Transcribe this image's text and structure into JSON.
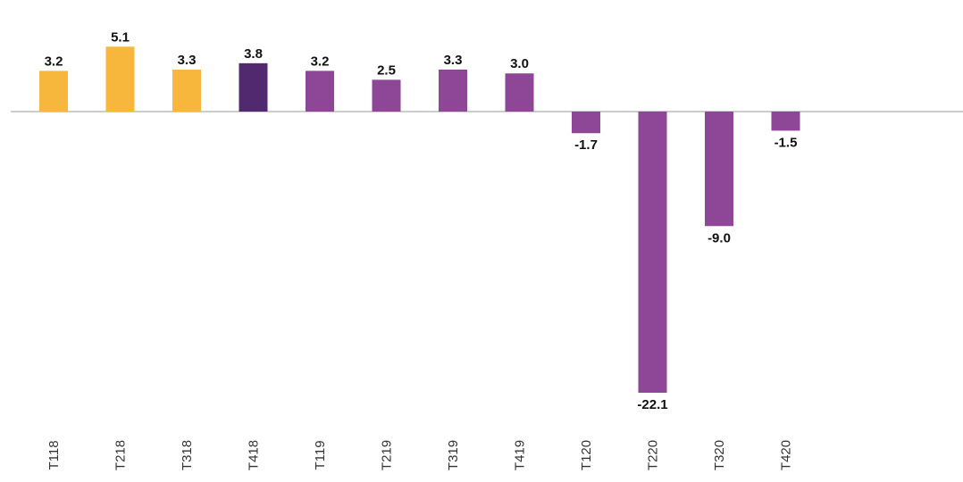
{
  "chart_data": {
    "type": "bar",
    "categories": [
      "T118",
      "T218",
      "T318",
      "T418",
      "T119",
      "T219",
      "T319",
      "T419",
      "T120",
      "T220",
      "T320",
      "T420"
    ],
    "values": [
      3.2,
      5.1,
      3.3,
      3.8,
      3.2,
      2.5,
      3.3,
      3.0,
      -1.7,
      -22.1,
      -9.0,
      -1.5
    ],
    "value_labels": [
      "3.2",
      "5.1",
      "3.3",
      "3.8",
      "3.2",
      "2.5",
      "3.3",
      "3.0",
      "-1.7",
      "-22.1",
      "-9.0",
      "-1.5"
    ],
    "colors": [
      "#f7b73d",
      "#f7b73d",
      "#f7b73d",
      "#50296f",
      "#8d4796",
      "#8d4796",
      "#8d4796",
      "#8d4796",
      "#8d4796",
      "#8d4796",
      "#8d4796",
      "#8d4796"
    ]
  }
}
